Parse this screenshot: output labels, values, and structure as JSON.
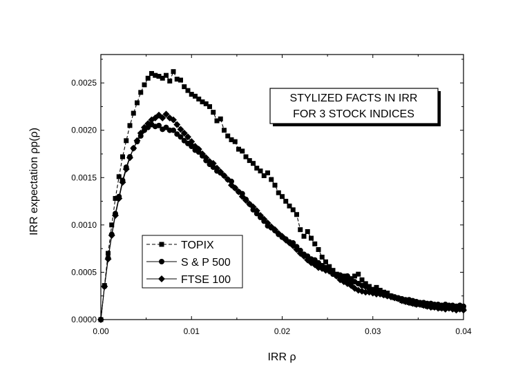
{
  "chart_data": {
    "type": "line",
    "xlabel": "IRR ρ",
    "ylabel": "IRR expectation ρp(ρ)",
    "xlim": [
      0.0,
      0.04
    ],
    "ylim": [
      0.0,
      0.0028
    ],
    "xticks": [
      0.0,
      0.01,
      0.02,
      0.03,
      0.04
    ],
    "xtick_labels": [
      "0.00",
      "0.01",
      "0.02",
      "0.03",
      "0.04"
    ],
    "yticks": [
      0.0,
      0.0005,
      0.001,
      0.0015,
      0.002,
      0.0025
    ],
    "ytick_labels": [
      "0.0000",
      "0.0005",
      "0.0010",
      "0.0015",
      "0.0020",
      "0.0025"
    ],
    "legend_position": "lower-left",
    "grid": false,
    "annotation": {
      "line1": "STYLIZED FACTS IN IRR",
      "line2": "FOR 3 STOCK INDICES",
      "position": "upper-right"
    },
    "series": [
      {
        "name": "TOPIX",
        "marker": "square",
        "line": "dashed",
        "x": [
          0.0,
          0.0004,
          0.0008,
          0.0012,
          0.0016,
          0.002,
          0.0024,
          0.0028,
          0.0032,
          0.0036,
          0.004,
          0.0044,
          0.0048,
          0.0052,
          0.0056,
          0.006,
          0.0064,
          0.0068,
          0.0072,
          0.0076,
          0.008,
          0.0084,
          0.0088,
          0.0092,
          0.0096,
          0.01,
          0.0104,
          0.0108,
          0.0112,
          0.0116,
          0.012,
          0.0124,
          0.0128,
          0.0132,
          0.0136,
          0.014,
          0.0144,
          0.0148,
          0.0152,
          0.0156,
          0.016,
          0.0164,
          0.0168,
          0.0172,
          0.0176,
          0.018,
          0.0184,
          0.0188,
          0.0192,
          0.0196,
          0.02,
          0.0204,
          0.0208,
          0.0212,
          0.0216,
          0.022,
          0.0224,
          0.0228,
          0.0232,
          0.0236,
          0.024,
          0.0244,
          0.0248,
          0.0252,
          0.0256,
          0.026,
          0.0264,
          0.0268,
          0.0272,
          0.0276,
          0.028,
          0.0284,
          0.0288,
          0.0292,
          0.0296,
          0.03,
          0.0304,
          0.0308,
          0.0312,
          0.0316,
          0.032,
          0.0324,
          0.0328,
          0.0332,
          0.0336,
          0.034,
          0.0344,
          0.0348,
          0.0352,
          0.0356,
          0.036,
          0.0364,
          0.0368,
          0.0372,
          0.0376,
          0.038,
          0.0384,
          0.0388,
          0.0392,
          0.0396,
          0.04
        ],
        "y": [
          0.0,
          0.00036,
          0.0007,
          0.001,
          0.00128,
          0.00151,
          0.00172,
          0.00189,
          0.00205,
          0.00218,
          0.00229,
          0.0024,
          0.00248,
          0.00255,
          0.0026,
          0.00258,
          0.00257,
          0.00255,
          0.00258,
          0.00252,
          0.00262,
          0.00254,
          0.00253,
          0.00246,
          0.00242,
          0.00238,
          0.00236,
          0.00233,
          0.0023,
          0.00228,
          0.00225,
          0.00219,
          0.0021,
          0.00212,
          0.002,
          0.00194,
          0.0019,
          0.00188,
          0.0018,
          0.00178,
          0.00172,
          0.00168,
          0.00165,
          0.0016,
          0.00157,
          0.00152,
          0.00155,
          0.00148,
          0.00142,
          0.00134,
          0.0013,
          0.00125,
          0.0012,
          0.00116,
          0.00111,
          0.00095,
          0.00088,
          0.00093,
          0.00086,
          0.0008,
          0.00074,
          0.00066,
          0.00061,
          0.00056,
          0.00052,
          0.00048,
          0.00044,
          0.00046,
          0.00043,
          0.0004,
          0.00046,
          0.00048,
          0.00042,
          0.00038,
          0.00035,
          0.00032,
          0.00034,
          0.00031,
          0.00029,
          0.00028,
          0.00025,
          0.00023,
          0.00022,
          0.0002,
          0.00019,
          0.00018,
          0.00017,
          0.00016,
          0.00016,
          0.00015,
          0.00014,
          0.00014,
          0.00013,
          0.00014,
          0.00012,
          0.00013,
          0.00012,
          0.00013,
          0.00011,
          0.00012,
          0.00011
        ]
      },
      {
        "name": "S & P 500",
        "marker": "circle",
        "line": "solid",
        "x": [
          0.0,
          0.0004,
          0.0008,
          0.0012,
          0.0016,
          0.002,
          0.0024,
          0.0028,
          0.0032,
          0.0036,
          0.004,
          0.0044,
          0.0048,
          0.0052,
          0.0056,
          0.006,
          0.0064,
          0.0068,
          0.0072,
          0.0076,
          0.008,
          0.0084,
          0.0088,
          0.0092,
          0.0096,
          0.01,
          0.0104,
          0.0108,
          0.0112,
          0.0116,
          0.012,
          0.0124,
          0.0128,
          0.0132,
          0.0136,
          0.014,
          0.0144,
          0.0148,
          0.0152,
          0.0156,
          0.016,
          0.0164,
          0.0168,
          0.0172,
          0.0176,
          0.018,
          0.0184,
          0.0188,
          0.0192,
          0.0196,
          0.02,
          0.0204,
          0.0208,
          0.0212,
          0.0216,
          0.022,
          0.0224,
          0.0228,
          0.0232,
          0.0236,
          0.024,
          0.0244,
          0.0248,
          0.0252,
          0.0256,
          0.026,
          0.0264,
          0.0268,
          0.0272,
          0.0276,
          0.028,
          0.0284,
          0.0288,
          0.0292,
          0.0296,
          0.03,
          0.0304,
          0.0308,
          0.0312,
          0.0316,
          0.032,
          0.0324,
          0.0328,
          0.0332,
          0.0336,
          0.034,
          0.0344,
          0.0348,
          0.0352,
          0.0356,
          0.036,
          0.0364,
          0.0368,
          0.0372,
          0.0376,
          0.038,
          0.0384,
          0.0388,
          0.0392,
          0.0396,
          0.04
        ],
        "y": [
          0.0,
          0.00035,
          0.00065,
          0.0009,
          0.00112,
          0.0013,
          0.00147,
          0.00161,
          0.00172,
          0.00181,
          0.00188,
          0.00194,
          0.002,
          0.00203,
          0.00206,
          0.00204,
          0.00205,
          0.00201,
          0.00203,
          0.002,
          0.002,
          0.00196,
          0.00193,
          0.00189,
          0.00186,
          0.00183,
          0.00179,
          0.00177,
          0.00173,
          0.00168,
          0.00164,
          0.00161,
          0.00157,
          0.00155,
          0.00152,
          0.00148,
          0.00146,
          0.00139,
          0.00135,
          0.00133,
          0.00127,
          0.00122,
          0.00116,
          0.00112,
          0.00108,
          0.00104,
          0.00099,
          0.00097,
          0.00094,
          0.0009,
          0.00087,
          0.00085,
          0.00082,
          0.00081,
          0.00077,
          0.00073,
          0.00069,
          0.00067,
          0.00064,
          0.00063,
          0.0006,
          0.00057,
          0.00055,
          0.00053,
          0.00048,
          0.00046,
          0.00047,
          0.00045,
          0.00046,
          0.00043,
          0.0004,
          0.00038,
          0.00036,
          0.00035,
          0.00033,
          0.00031,
          0.00029,
          0.00028,
          0.00026,
          0.00025,
          0.00025,
          0.00024,
          0.00023,
          0.00022,
          0.00021,
          0.00021,
          0.0002,
          0.00019,
          0.00018,
          0.00018,
          0.00017,
          0.00017,
          0.00016,
          0.00016,
          0.00015,
          0.00016,
          0.00015,
          0.00015,
          0.00014,
          0.00015,
          0.00014
        ]
      },
      {
        "name": "FTSE 100",
        "marker": "diamond",
        "line": "solid",
        "x": [
          0.0,
          0.0004,
          0.0008,
          0.0012,
          0.0016,
          0.002,
          0.0024,
          0.0028,
          0.0032,
          0.0036,
          0.004,
          0.0044,
          0.0048,
          0.0052,
          0.0056,
          0.006,
          0.0064,
          0.0068,
          0.0072,
          0.0076,
          0.008,
          0.0084,
          0.0088,
          0.0092,
          0.0096,
          0.01,
          0.0104,
          0.0108,
          0.0112,
          0.0116,
          0.012,
          0.0124,
          0.0128,
          0.0132,
          0.0136,
          0.014,
          0.0144,
          0.0148,
          0.0152,
          0.0156,
          0.016,
          0.0164,
          0.0168,
          0.0172,
          0.0176,
          0.018,
          0.0184,
          0.0188,
          0.0192,
          0.0196,
          0.02,
          0.0204,
          0.0208,
          0.0212,
          0.0216,
          0.022,
          0.0224,
          0.0228,
          0.0232,
          0.0236,
          0.024,
          0.0244,
          0.0248,
          0.0252,
          0.0256,
          0.026,
          0.0264,
          0.0268,
          0.0272,
          0.0276,
          0.028,
          0.0284,
          0.0288,
          0.0292,
          0.0296,
          0.03,
          0.0304,
          0.0308,
          0.0312,
          0.0316,
          0.032,
          0.0324,
          0.0328,
          0.0332,
          0.0336,
          0.034,
          0.0344,
          0.0348,
          0.0352,
          0.0356,
          0.036,
          0.0364,
          0.0368,
          0.0372,
          0.0376,
          0.038,
          0.0384,
          0.0388,
          0.0392,
          0.0396,
          0.04
        ],
        "y": [
          0.0,
          0.00035,
          0.00064,
          0.00089,
          0.0011,
          0.00128,
          0.00145,
          0.00159,
          0.00171,
          0.00181,
          0.00189,
          0.00197,
          0.00203,
          0.00207,
          0.00211,
          0.00213,
          0.00216,
          0.00213,
          0.00217,
          0.00213,
          0.00211,
          0.00206,
          0.00201,
          0.00197,
          0.00193,
          0.00188,
          0.00183,
          0.0018,
          0.00175,
          0.00171,
          0.00167,
          0.00165,
          0.0016,
          0.00156,
          0.00152,
          0.00148,
          0.00142,
          0.00139,
          0.00135,
          0.0013,
          0.00126,
          0.00122,
          0.00119,
          0.00115,
          0.0011,
          0.00106,
          0.00102,
          0.00098,
          0.00095,
          0.00091,
          0.00088,
          0.00084,
          0.00081,
          0.00078,
          0.00074,
          0.0007,
          0.00067,
          0.00063,
          0.0006,
          0.00058,
          0.00055,
          0.00054,
          0.00052,
          0.00051,
          0.00049,
          0.00046,
          0.00042,
          0.0004,
          0.00038,
          0.00036,
          0.00033,
          0.00031,
          0.0003,
          0.00029,
          0.00029,
          0.00028,
          0.00027,
          0.00027,
          0.00026,
          0.00025,
          0.00024,
          0.00023,
          0.00022,
          0.0002,
          0.00019,
          0.00018,
          0.00017,
          0.00016,
          0.00016,
          0.00015,
          0.00014,
          0.00013,
          0.00013,
          0.00012,
          0.00012,
          0.00011,
          0.00012,
          0.00011,
          0.0001,
          0.00011,
          0.0001
        ]
      }
    ]
  }
}
